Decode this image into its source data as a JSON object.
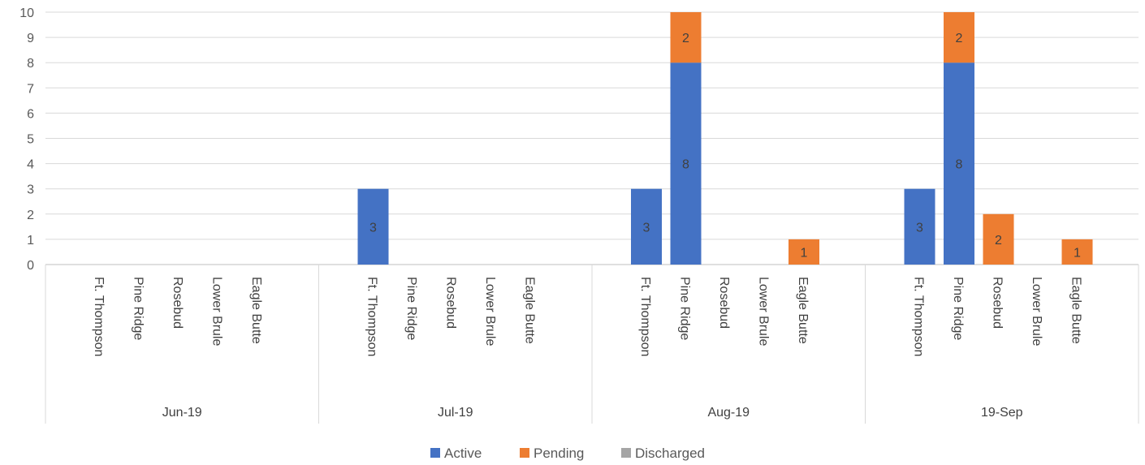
{
  "chart_data": {
    "type": "bar",
    "stacked": true,
    "groups": [
      {
        "label": "Jun-19",
        "categories": [
          "Ft. Thompson",
          "Pine Ridge",
          "Rosebud",
          "Lower Brule",
          "Eagle Butte"
        ]
      },
      {
        "label": "Jul-19",
        "categories": [
          "Ft. Thompson",
          "Pine Ridge",
          "Rosebud",
          "Lower Brule",
          "Eagle Butte"
        ]
      },
      {
        "label": "Aug-19",
        "categories": [
          "Ft. Thompson",
          "Pine Ridge",
          "Rosebud",
          "Lower Brule",
          "Eagle Butte"
        ]
      },
      {
        "label": "19-Sep",
        "categories": [
          "Ft. Thompson",
          "Pine Ridge",
          "Rosebud",
          "Lower Brule",
          "Eagle Butte"
        ]
      }
    ],
    "series": [
      {
        "name": "Active",
        "color": "#4472C4",
        "values": [
          [
            0,
            0,
            0,
            0,
            0
          ],
          [
            3,
            0,
            0,
            0,
            0
          ],
          [
            3,
            8,
            0,
            0,
            0
          ],
          [
            3,
            8,
            0,
            0,
            0
          ]
        ]
      },
      {
        "name": "Pending",
        "color": "#ED7D31",
        "values": [
          [
            0,
            0,
            0,
            0,
            0
          ],
          [
            0,
            0,
            0,
            0,
            0
          ],
          [
            0,
            2,
            0,
            0,
            1
          ],
          [
            0,
            2,
            2,
            0,
            1
          ]
        ]
      },
      {
        "name": "Discharged",
        "color": "#A5A5A5",
        "values": [
          [
            0,
            0,
            0,
            0,
            0
          ],
          [
            0,
            0,
            0,
            0,
            0
          ],
          [
            0,
            0,
            0,
            0,
            0
          ],
          [
            0,
            0,
            0,
            0,
            0
          ]
        ]
      }
    ],
    "ylim": [
      0,
      10
    ],
    "yticks": [
      0,
      1,
      2,
      3,
      4,
      5,
      6,
      7,
      8,
      9,
      10
    ],
    "grid": true,
    "legend": "bottom"
  }
}
